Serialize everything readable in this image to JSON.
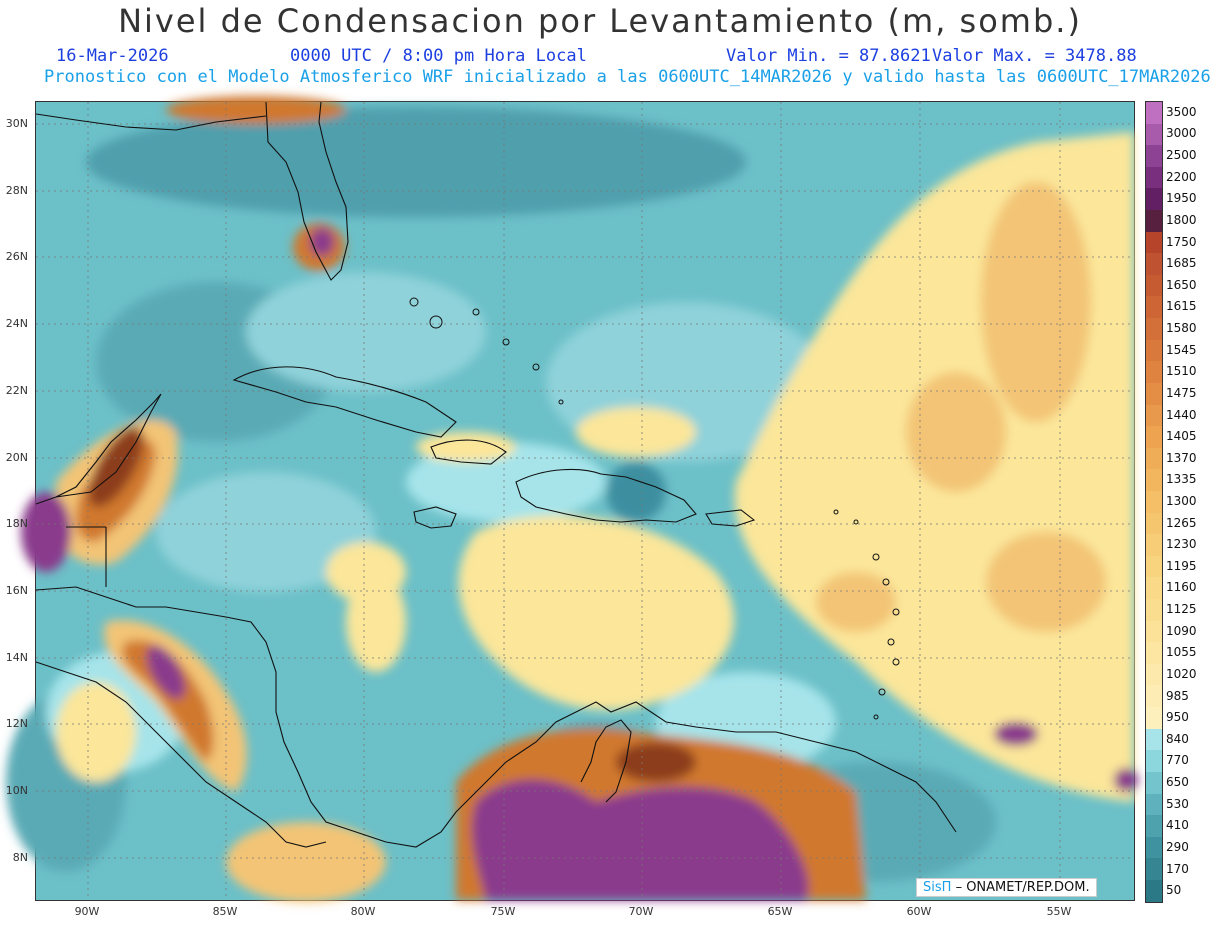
{
  "header": {
    "title": "Nivel de Condensacion por Levantamiento (m, somb.)",
    "date": "16-Mar-2026",
    "time": "0000 UTC / 8:00 pm Hora Local",
    "valor_min": "Valor Min. = 87.8621",
    "valor_max": "Valor Max. = 3478.88",
    "subtitle": "Pronostico con el Modelo Atmosferico WRF inicializado a las 0600UTC_14MAR2026 y valido hasta las  0600UTC_17MAR2026"
  },
  "map": {
    "lat_labels": [
      "30N",
      "28N",
      "26N",
      "24N",
      "22N",
      "20N",
      "18N",
      "16N",
      "14N",
      "12N",
      "10N",
      "8N"
    ],
    "lon_labels": [
      "90W",
      "85W",
      "80W",
      "75W",
      "70W",
      "65W",
      "60W",
      "55W"
    ],
    "colors": {
      "teal_dark": "#3e8fa0",
      "teal": "#6cc0c8",
      "cyan_light": "#a6e4ea",
      "cream": "#fbe69a",
      "peach": "#f3c476",
      "orange": "#d0782e",
      "brown": "#8c3e1e",
      "purple": "#8a3a8c"
    }
  },
  "legend": {
    "levels": [
      "3500",
      "3000",
      "2500",
      "2200",
      "1950",
      "1800",
      "1750",
      "1685",
      "1650",
      "1615",
      "1580",
      "1545",
      "1510",
      "1475",
      "1440",
      "1405",
      "1370",
      "1335",
      "1300",
      "1265",
      "1230",
      "1195",
      "1160",
      "1125",
      "1090",
      "1055",
      "1020",
      "985",
      "950",
      "840",
      "770",
      "650",
      "530",
      "410",
      "290",
      "170",
      "50"
    ],
    "colors": [
      "#c070c0",
      "#a85aab",
      "#8e4293",
      "#7a2f7e",
      "#621f63",
      "#57203f",
      "#b5442a",
      "#bf5230",
      "#c65b32",
      "#cd6535",
      "#d36f38",
      "#d9793c",
      "#df8440",
      "#e48e45",
      "#e9994b",
      "#eda350",
      "#f0ad57",
      "#f2b65e",
      "#f4bf66",
      "#f6c66e",
      "#f7cd77",
      "#f9d47f",
      "#fad988",
      "#fbdd90",
      "#fce199",
      "#fde5a2",
      "#fde9ab",
      "#fdecb3",
      "#fdf0bc",
      "#a6e4ea",
      "#8cd6de",
      "#74c4cd",
      "#5fb2bd",
      "#4ea2ae",
      "#3f93a0",
      "#358592",
      "#2b7887"
    ]
  },
  "credit": {
    "logo": "SisΠ",
    "text": "– ONAMET/REP.DOM."
  }
}
